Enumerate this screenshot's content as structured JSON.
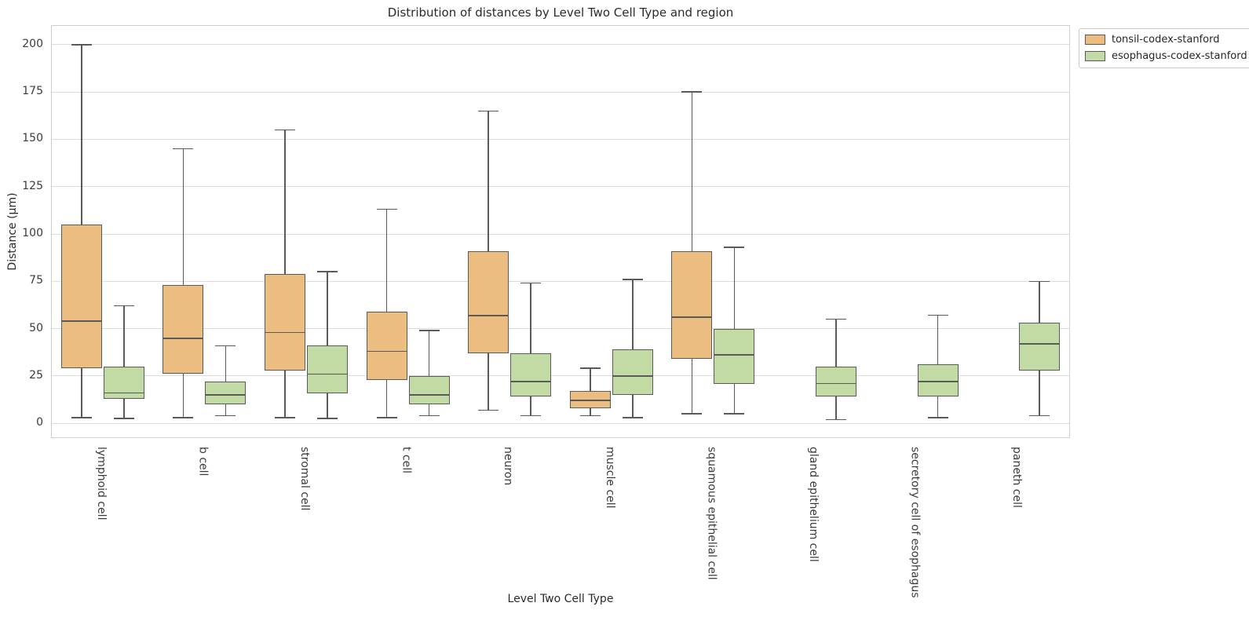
{
  "chart_data": {
    "type": "boxplot",
    "title": "Distribution of distances by Level Two Cell Type and region",
    "xlabel": "Level Two Cell Type",
    "ylabel": "Distance (μm)",
    "legend_title": null,
    "legend_position": "upper-right-outside",
    "grid": true,
    "ylim": [
      -7.4,
      209.9
    ],
    "yticks": [
      0,
      25,
      50,
      75,
      100,
      125,
      150,
      175,
      200
    ],
    "categories": [
      "lymphoid cell",
      "b cell",
      "stromal cell",
      "t cell",
      "neuron",
      "muscle cell",
      "squamous epithelial cell",
      "gland epithelium cell",
      "secretory cell of esophagus",
      "paneth cell"
    ],
    "series": [
      {
        "name": "tonsil-codex-stanford",
        "fill": "#ebbd80",
        "edge": "#5a5a5a",
        "boxes": [
          {
            "whislo": 3,
            "q1": 29,
            "med": 54,
            "q3": 105,
            "whishi": 200
          },
          {
            "whislo": 3,
            "q1": 26,
            "med": 45,
            "q3": 73,
            "whishi": 145
          },
          {
            "whislo": 3,
            "q1": 28,
            "med": 48,
            "q3": 79,
            "whishi": 155
          },
          {
            "whislo": 3,
            "q1": 23,
            "med": 38,
            "q3": 59,
            "whishi": 113
          },
          {
            "whislo": 7,
            "q1": 37,
            "med": 57,
            "q3": 91,
            "whishi": 165
          },
          {
            "whislo": 4,
            "q1": 8,
            "med": 12,
            "q3": 17,
            "whishi": 29
          },
          {
            "whislo": 5,
            "q1": 34,
            "med": 56,
            "q3": 91,
            "whishi": 175
          },
          null,
          null,
          null
        ]
      },
      {
        "name": "esophagus-codex-stanford",
        "fill": "#c2dba4",
        "edge": "#5a5a5a",
        "boxes": [
          {
            "whislo": 2.5,
            "q1": 13,
            "med": 16,
            "q3": 30,
            "whishi": 62
          },
          {
            "whislo": 4,
            "q1": 10,
            "med": 15,
            "q3": 22,
            "whishi": 41
          },
          {
            "whislo": 2.5,
            "q1": 16,
            "med": 26,
            "q3": 41,
            "whishi": 80
          },
          {
            "whislo": 4,
            "q1": 10,
            "med": 15,
            "q3": 25,
            "whishi": 49
          },
          {
            "whislo": 4,
            "q1": 14,
            "med": 22,
            "q3": 37,
            "whishi": 74
          },
          {
            "whislo": 3,
            "q1": 15,
            "med": 25,
            "q3": 39,
            "whishi": 76
          },
          {
            "whislo": 5,
            "q1": 21,
            "med": 36,
            "q3": 50,
            "whishi": 93
          },
          {
            "whislo": 2,
            "q1": 14,
            "med": 21,
            "q3": 30,
            "whishi": 55
          },
          {
            "whislo": 3,
            "q1": 14,
            "med": 22,
            "q3": 31,
            "whishi": 57
          },
          {
            "whislo": 4,
            "q1": 28,
            "med": 42,
            "q3": 53,
            "whishi": 75
          }
        ]
      }
    ]
  },
  "style_colors": {
    "grid": "#dcdcdc",
    "frame": "#cfcfcf",
    "text": "#262626"
  }
}
